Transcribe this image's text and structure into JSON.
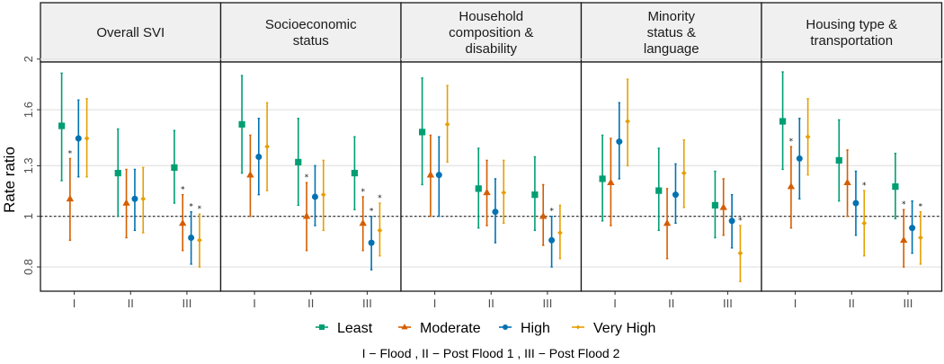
{
  "chart_data": {
    "type": "scatter",
    "subtype": "point-range (faceted)",
    "ylabel": "Rate ratio",
    "xlabel": "",
    "yscale": "log",
    "ylim": [
      0.72,
      2.02
    ],
    "yticks": [
      0.8,
      1,
      1.25,
      1.6,
      2
    ],
    "ytick_labels": [
      "0.8",
      "1",
      "1.3",
      "1.6",
      "2"
    ],
    "reference_line": 1,
    "grid": true,
    "categories": [
      "I",
      "II",
      "III"
    ],
    "legend_position": "bottom",
    "series": [
      {
        "name": "Least",
        "color": "#009E73",
        "shape": "square"
      },
      {
        "name": "Moderate",
        "color": "#D55E00",
        "shape": "triangle"
      },
      {
        "name": "High",
        "color": "#0072B2",
        "shape": "circle"
      },
      {
        "name": "Very High",
        "color": "#E69F00",
        "shape": "diamond"
      }
    ],
    "caption": "I − Flood , II − Post Flood 1 , III − Post Flood 2",
    "significance_marker": "*",
    "panels": [
      {
        "title": [
          "Overall SVI"
        ],
        "data": {
          "Least": [
            {
              "x": "I",
              "est": 1.49,
              "lo": 1.17,
              "hi": 1.88,
              "sig": false
            },
            {
              "x": "II",
              "est": 1.21,
              "lo": 1.0,
              "hi": 1.47,
              "sig": false
            },
            {
              "x": "III",
              "est": 1.24,
              "lo": 1.06,
              "hi": 1.46,
              "sig": false
            }
          ],
          "Moderate": [
            {
              "x": "I",
              "est": 1.08,
              "lo": 0.9,
              "hi": 1.29,
              "sig": true
            },
            {
              "x": "II",
              "est": 1.06,
              "lo": 0.91,
              "hi": 1.23,
              "sig": false
            },
            {
              "x": "III",
              "est": 0.97,
              "lo": 0.86,
              "hi": 1.1,
              "sig": true
            }
          ],
          "High": [
            {
              "x": "I",
              "est": 1.41,
              "lo": 1.19,
              "hi": 1.67,
              "sig": false
            },
            {
              "x": "II",
              "est": 1.08,
              "lo": 0.94,
              "hi": 1.23,
              "sig": false
            },
            {
              "x": "III",
              "est": 0.91,
              "lo": 0.81,
              "hi": 1.02,
              "sig": true
            }
          ],
          "Very High": [
            {
              "x": "I",
              "est": 1.41,
              "lo": 1.19,
              "hi": 1.68,
              "sig": false
            },
            {
              "x": "II",
              "est": 1.08,
              "lo": 0.93,
              "hi": 1.24,
              "sig": false
            },
            {
              "x": "III",
              "est": 0.9,
              "lo": 0.8,
              "hi": 1.01,
              "sig": true
            }
          ]
        }
      },
      {
        "title": [
          "Socioeconomic",
          "status"
        ],
        "data": {
          "Least": [
            {
              "x": "I",
              "est": 1.5,
              "lo": 1.21,
              "hi": 1.86,
              "sig": false
            },
            {
              "x": "II",
              "est": 1.27,
              "lo": 1.05,
              "hi": 1.54,
              "sig": false
            },
            {
              "x": "III",
              "est": 1.21,
              "lo": 1.03,
              "hi": 1.42,
              "sig": false
            }
          ],
          "Moderate": [
            {
              "x": "I",
              "est": 1.2,
              "lo": 1.0,
              "hi": 1.43,
              "sig": false
            },
            {
              "x": "II",
              "est": 1.0,
              "lo": 0.86,
              "hi": 1.16,
              "sig": true
            },
            {
              "x": "III",
              "est": 0.97,
              "lo": 0.86,
              "hi": 1.09,
              "sig": true
            }
          ],
          "High": [
            {
              "x": "I",
              "est": 1.3,
              "lo": 1.1,
              "hi": 1.54,
              "sig": false
            },
            {
              "x": "II",
              "est": 1.09,
              "lo": 0.96,
              "hi": 1.25,
              "sig": false
            },
            {
              "x": "III",
              "est": 0.89,
              "lo": 0.79,
              "hi": 1.0,
              "sig": true
            }
          ],
          "Very High": [
            {
              "x": "I",
              "est": 1.36,
              "lo": 1.12,
              "hi": 1.65,
              "sig": false
            },
            {
              "x": "II",
              "est": 1.1,
              "lo": 0.94,
              "hi": 1.28,
              "sig": false
            },
            {
              "x": "III",
              "est": 0.94,
              "lo": 0.84,
              "hi": 1.06,
              "sig": true
            }
          ]
        }
      },
      {
        "title": [
          "Household",
          "composition &",
          "disability"
        ],
        "data": {
          "Least": [
            {
              "x": "I",
              "est": 1.45,
              "lo": 1.15,
              "hi": 1.84,
              "sig": false
            },
            {
              "x": "II",
              "est": 1.13,
              "lo": 0.95,
              "hi": 1.35,
              "sig": false
            },
            {
              "x": "III",
              "est": 1.1,
              "lo": 0.94,
              "hi": 1.3,
              "sig": false
            }
          ],
          "Moderate": [
            {
              "x": "I",
              "est": 1.2,
              "lo": 1.0,
              "hi": 1.43,
              "sig": false
            },
            {
              "x": "II",
              "est": 1.11,
              "lo": 0.96,
              "hi": 1.28,
              "sig": false
            },
            {
              "x": "III",
              "est": 1.0,
              "lo": 0.88,
              "hi": 1.15,
              "sig": false
            }
          ],
          "High": [
            {
              "x": "I",
              "est": 1.2,
              "lo": 1.0,
              "hi": 1.42,
              "sig": false
            },
            {
              "x": "II",
              "est": 1.02,
              "lo": 0.89,
              "hi": 1.18,
              "sig": false
            },
            {
              "x": "III",
              "est": 0.9,
              "lo": 0.8,
              "hi": 1.0,
              "sig": true
            }
          ],
          "Very High": [
            {
              "x": "I",
              "est": 1.5,
              "lo": 1.27,
              "hi": 1.78,
              "sig": false
            },
            {
              "x": "II",
              "est": 1.11,
              "lo": 0.97,
              "hi": 1.28,
              "sig": false
            },
            {
              "x": "III",
              "est": 0.93,
              "lo": 0.83,
              "hi": 1.05,
              "sig": false
            }
          ]
        }
      },
      {
        "title": [
          "Minority",
          "status &",
          "language"
        ],
        "data": {
          "Least": [
            {
              "x": "I",
              "est": 1.18,
              "lo": 0.98,
              "hi": 1.43,
              "sig": false
            },
            {
              "x": "II",
              "est": 1.12,
              "lo": 0.94,
              "hi": 1.35,
              "sig": false
            },
            {
              "x": "III",
              "est": 1.05,
              "lo": 0.91,
              "hi": 1.22,
              "sig": false
            }
          ],
          "Moderate": [
            {
              "x": "I",
              "est": 1.16,
              "lo": 0.96,
              "hi": 1.41,
              "sig": false
            },
            {
              "x": "II",
              "est": 0.97,
              "lo": 0.83,
              "hi": 1.13,
              "sig": false
            },
            {
              "x": "III",
              "est": 1.04,
              "lo": 0.92,
              "hi": 1.18,
              "sig": false
            }
          ],
          "High": [
            {
              "x": "I",
              "est": 1.39,
              "lo": 1.18,
              "hi": 1.65,
              "sig": false
            },
            {
              "x": "II",
              "est": 1.1,
              "lo": 0.97,
              "hi": 1.26,
              "sig": false
            },
            {
              "x": "III",
              "est": 0.98,
              "lo": 0.87,
              "hi": 1.1,
              "sig": false
            }
          ],
          "Very High": [
            {
              "x": "I",
              "est": 1.52,
              "lo": 1.25,
              "hi": 1.83,
              "sig": false
            },
            {
              "x": "II",
              "est": 1.21,
              "lo": 1.04,
              "hi": 1.4,
              "sig": false
            },
            {
              "x": "III",
              "est": 0.85,
              "lo": 0.75,
              "hi": 0.96,
              "sig": true
            }
          ]
        }
      },
      {
        "title": [
          "Housing type &",
          "transportation"
        ],
        "data": {
          "Least": [
            {
              "x": "I",
              "est": 1.52,
              "lo": 1.23,
              "hi": 1.89,
              "sig": false
            },
            {
              "x": "II",
              "est": 1.28,
              "lo": 1.07,
              "hi": 1.53,
              "sig": false
            },
            {
              "x": "III",
              "est": 1.14,
              "lo": 0.99,
              "hi": 1.32,
              "sig": false
            }
          ],
          "Moderate": [
            {
              "x": "I",
              "est": 1.14,
              "lo": 0.95,
              "hi": 1.36,
              "sig": true
            },
            {
              "x": "II",
              "est": 1.16,
              "lo": 1.0,
              "hi": 1.34,
              "sig": false
            },
            {
              "x": "III",
              "est": 0.9,
              "lo": 0.8,
              "hi": 1.03,
              "sig": true
            }
          ],
          "High": [
            {
              "x": "I",
              "est": 1.29,
              "lo": 1.08,
              "hi": 1.54,
              "sig": false
            },
            {
              "x": "II",
              "est": 1.06,
              "lo": 0.92,
              "hi": 1.22,
              "sig": false
            },
            {
              "x": "III",
              "est": 0.95,
              "lo": 0.85,
              "hi": 1.07,
              "sig": false
            }
          ],
          "Very High": [
            {
              "x": "I",
              "est": 1.42,
              "lo": 1.2,
              "hi": 1.68,
              "sig": false
            },
            {
              "x": "II",
              "est": 0.97,
              "lo": 0.84,
              "hi": 1.12,
              "sig": true
            },
            {
              "x": "III",
              "est": 0.91,
              "lo": 0.81,
              "hi": 1.02,
              "sig": true
            }
          ]
        }
      }
    ]
  }
}
